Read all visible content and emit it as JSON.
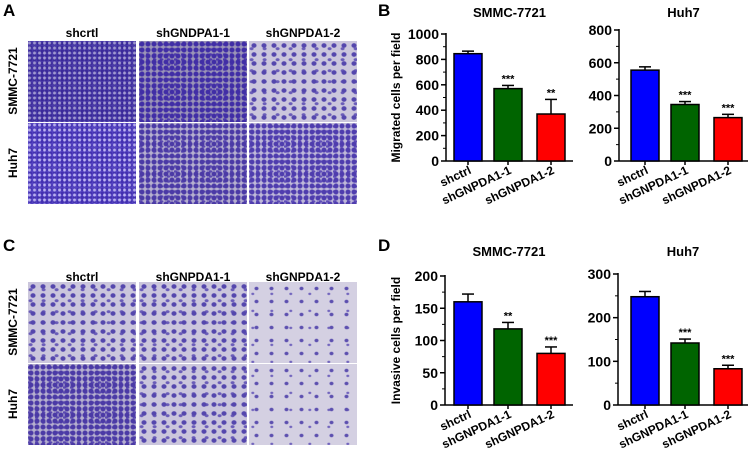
{
  "panels": {
    "A": {
      "letter": "A",
      "columns": [
        "shcrtl",
        "shGNDPA1-1",
        "shGNPDA1-2"
      ],
      "rows": [
        "SMMC-7721",
        "Huh7"
      ]
    },
    "C": {
      "letter": "C",
      "columns": [
        "shctrl",
        "shGNPDA1-1",
        "shGNPDA1-2"
      ],
      "rows": [
        "SMMC-7721",
        "Huh7"
      ]
    },
    "B": {
      "letter": "B"
    },
    "D": {
      "letter": "D"
    }
  },
  "colors": {
    "shctrl": "#0000ff",
    "shGNPDA1-1": "#006400",
    "shGNPDA1-2": "#ff0000"
  },
  "chart_data": [
    {
      "id": "B-SMMC",
      "type": "bar",
      "title": "SMMC-7721",
      "ylabel": "Migrated cells per field",
      "xlabel": "",
      "categories": [
        "shctrl",
        "shGNPDA1-1",
        "shGNPDA1-2"
      ],
      "values": [
        845,
        570,
        370
      ],
      "errors": [
        20,
        25,
        115
      ],
      "significance": [
        "",
        "***",
        "**"
      ],
      "ylim": [
        0,
        1000
      ],
      "yticks": [
        0,
        200,
        400,
        600,
        800,
        1000
      ],
      "grid": false
    },
    {
      "id": "B-Huh7",
      "type": "bar",
      "title": "Huh7",
      "ylabel": "",
      "xlabel": "",
      "categories": [
        "shctrl",
        "shGNPDA1-1",
        "shGNPDA1-2"
      ],
      "values": [
        555,
        345,
        265
      ],
      "errors": [
        20,
        18,
        20
      ],
      "significance": [
        "",
        "***",
        "***"
      ],
      "ylim": [
        0,
        800
      ],
      "yticks": [
        0,
        200,
        400,
        600,
        800
      ],
      "grid": false
    },
    {
      "id": "D-SMMC",
      "type": "bar",
      "title": "SMMC-7721",
      "ylabel": "Invasive cells per field",
      "xlabel": "",
      "categories": [
        "shctrl",
        "shGNPDA1-1",
        "shGNPDA1-2"
      ],
      "values": [
        160,
        118,
        80
      ],
      "errors": [
        12,
        10,
        10
      ],
      "significance": [
        "",
        "**",
        "***"
      ],
      "ylim": [
        0,
        200
      ],
      "yticks": [
        0,
        50,
        100,
        150,
        200
      ],
      "grid": false
    },
    {
      "id": "D-Huh7",
      "type": "bar",
      "title": "Huh7",
      "ylabel": "",
      "xlabel": "",
      "categories": [
        "shctrl",
        "shGNPDA1-1",
        "shGNPDA1-2"
      ],
      "values": [
        248,
        142,
        83
      ],
      "errors": [
        12,
        9,
        8
      ],
      "significance": [
        "",
        "***",
        "***"
      ],
      "ylim": [
        0,
        300
      ],
      "yticks": [
        0,
        100,
        200,
        300
      ],
      "grid": false
    }
  ]
}
